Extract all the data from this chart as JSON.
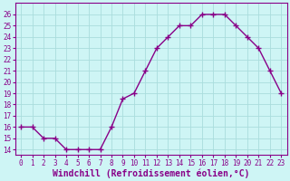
{
  "x": [
    0,
    1,
    2,
    3,
    4,
    5,
    6,
    7,
    8,
    9,
    10,
    11,
    12,
    13,
    14,
    15,
    16,
    17,
    18,
    19,
    20,
    21,
    22,
    23
  ],
  "y": [
    16,
    16,
    15,
    15,
    14,
    14,
    14,
    14,
    16,
    18.5,
    19,
    21,
    23,
    24,
    25,
    25,
    26,
    26,
    26,
    25,
    24,
    23,
    21,
    19
  ],
  "line_color": "#880088",
  "marker": "+",
  "marker_size": 4,
  "bg_color": "#cef5f5",
  "grid_color": "#aadddd",
  "text_color": "#880088",
  "xlabel": "Windchill (Refroidissement éolien,°C)",
  "xlabel_fontsize": 7,
  "ylim": [
    13.5,
    27
  ],
  "xlim": [
    -0.5,
    23.5
  ],
  "yticks": [
    14,
    15,
    16,
    17,
    18,
    19,
    20,
    21,
    22,
    23,
    24,
    25,
    26
  ],
  "xticks": [
    0,
    1,
    2,
    3,
    4,
    5,
    6,
    7,
    8,
    9,
    10,
    11,
    12,
    13,
    14,
    15,
    16,
    17,
    18,
    19,
    20,
    21,
    22,
    23
  ],
  "tick_fontsize": 5.5,
  "line_width": 1.0
}
